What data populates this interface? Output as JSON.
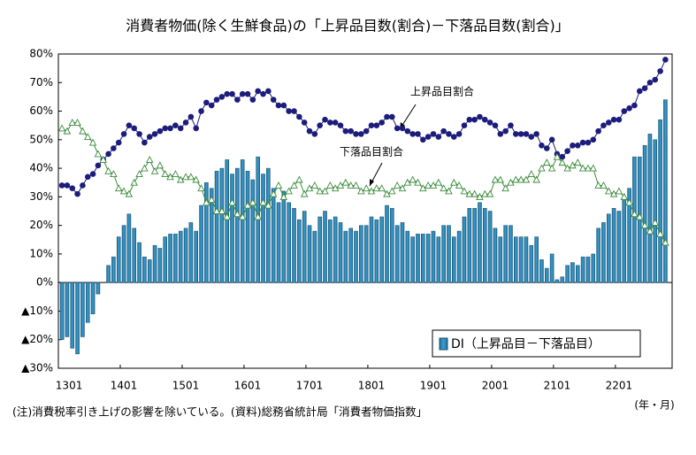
{
  "chart_data": {
    "type": "bar-line",
    "title": "消費者物価(除く生鮮食品)の「上昇品目数(割合)－下落品目数(割合)」",
    "categories": [
      "1301",
      null,
      null,
      null,
      null,
      null,
      null,
      null,
      null,
      null,
      null,
      null,
      "1401",
      null,
      null,
      null,
      null,
      null,
      null,
      null,
      null,
      null,
      null,
      null,
      "1501",
      null,
      null,
      null,
      null,
      null,
      null,
      null,
      null,
      null,
      null,
      null,
      "1601",
      null,
      null,
      null,
      null,
      null,
      null,
      null,
      null,
      null,
      null,
      null,
      "1701",
      null,
      null,
      null,
      null,
      null,
      null,
      null,
      null,
      null,
      null,
      null,
      "1801",
      null,
      null,
      null,
      null,
      null,
      null,
      null,
      null,
      null,
      null,
      null,
      "1901",
      null,
      null,
      null,
      null,
      null,
      null,
      null,
      null,
      null,
      null,
      null,
      "2001",
      null,
      null,
      null,
      null,
      null,
      null,
      null,
      null,
      null,
      null,
      null,
      "2101",
      null,
      null,
      null,
      null,
      null,
      null,
      null,
      null,
      null,
      null,
      null,
      "2201",
      null,
      null,
      null,
      null,
      null,
      null,
      null,
      null,
      null
    ],
    "series": [
      {
        "name": "DI（上昇品目－下落品目）",
        "kind": "bar",
        "color": "#3a9ccc",
        "values": [
          -20,
          -19,
          -23,
          -25,
          -19,
          -14,
          -11,
          -4,
          0,
          6,
          9,
          16,
          20,
          24,
          19,
          14,
          9,
          8,
          13,
          12,
          16,
          17,
          17,
          18,
          19,
          21,
          18,
          27,
          35,
          33,
          39,
          40,
          43,
          38,
          40,
          43,
          39,
          36,
          44,
          38,
          40,
          33,
          28,
          32,
          28,
          26,
          22,
          25,
          20,
          18,
          23,
          25,
          22,
          23,
          21,
          18,
          19,
          18,
          20,
          20,
          23,
          22,
          23,
          27,
          26,
          20,
          21,
          18,
          16,
          17,
          17,
          17,
          18,
          16,
          20,
          20,
          16,
          18,
          23,
          26,
          26,
          28,
          26,
          25,
          19,
          16,
          20,
          20,
          16,
          16,
          16,
          13,
          16,
          8,
          5,
          10,
          1,
          2,
          6,
          7,
          6,
          9,
          9,
          10,
          19,
          21,
          24,
          26,
          25,
          30,
          33,
          44,
          44,
          48,
          52,
          50,
          57,
          64
        ]
      },
      {
        "name": "上昇品目割合",
        "kind": "line",
        "marker": "circle",
        "color": "#1c1c7c",
        "values": [
          34,
          34,
          33,
          31,
          34,
          37,
          38,
          41,
          43,
          45,
          47,
          49,
          52,
          55,
          54,
          52,
          49,
          51,
          52,
          53,
          54,
          54,
          55,
          54,
          56,
          58,
          54,
          60,
          63,
          62,
          64,
          65,
          66,
          66,
          64,
          66,
          66,
          64,
          67,
          66,
          67,
          64,
          62,
          62,
          60,
          60,
          58,
          56,
          53,
          52,
          55,
          57,
          56,
          56,
          55,
          53,
          53,
          52,
          52,
          53,
          55,
          55,
          56,
          58,
          58,
          54,
          54,
          53,
          52,
          52,
          50,
          51,
          52,
          51,
          53,
          52,
          51,
          52,
          55,
          57,
          57,
          58,
          57,
          56,
          55,
          52,
          53,
          55,
          52,
          52,
          52,
          51,
          52,
          48,
          47,
          50,
          45,
          44,
          46,
          48,
          48,
          49,
          49,
          50,
          53,
          55,
          56,
          57,
          57,
          60,
          61,
          62,
          67,
          68,
          70,
          71,
          74,
          78
        ]
      },
      {
        "name": "下落品目割合",
        "kind": "line",
        "marker": "triangle",
        "color": "#3c8c3c",
        "values": [
          54,
          53,
          56,
          56,
          53,
          51,
          49,
          45,
          43,
          39,
          38,
          33,
          32,
          31,
          35,
          38,
          40,
          43,
          39,
          41,
          38,
          37,
          38,
          36,
          37,
          37,
          36,
          33,
          28,
          29,
          25,
          25,
          23,
          28,
          24,
          23,
          27,
          28,
          23,
          28,
          27,
          31,
          34,
          30,
          32,
          34,
          36,
          31,
          33,
          34,
          32,
          32,
          34,
          33,
          34,
          35,
          34,
          34,
          32,
          33,
          32,
          33,
          33,
          31,
          32,
          34,
          33,
          35,
          36,
          35,
          33,
          34,
          34,
          35,
          33,
          32,
          35,
          34,
          32,
          31,
          31,
          30,
          31,
          31,
          36,
          36,
          33,
          35,
          36,
          36,
          36,
          38,
          36,
          40,
          42,
          40,
          44,
          42,
          40,
          41,
          42,
          40,
          40,
          40,
          34,
          34,
          32,
          31,
          32,
          30,
          28,
          24,
          23,
          20,
          18,
          21,
          17,
          14
        ]
      }
    ],
    "ylim": [
      -30,
      80
    ],
    "yticks": [
      {
        "value": 80,
        "label": "80%"
      },
      {
        "value": 70,
        "label": "70%"
      },
      {
        "value": 60,
        "label": "60%"
      },
      {
        "value": 50,
        "label": "50%"
      },
      {
        "value": 40,
        "label": "40%"
      },
      {
        "value": 30,
        "label": "30%"
      },
      {
        "value": 20,
        "label": "20%"
      },
      {
        "value": 10,
        "label": "10%"
      },
      {
        "value": 0,
        "label": "0%"
      },
      {
        "value": -10,
        "label": "▲10%"
      },
      {
        "value": -20,
        "label": "▲20%"
      },
      {
        "value": -30,
        "label": "▲30%"
      }
    ],
    "grid": false,
    "legend": "lower right",
    "x_unit": "(年・月)",
    "note": "(注)消費税率引き上げの影響を除いている。(資料)総務省統計局「消費者物価指数」"
  }
}
